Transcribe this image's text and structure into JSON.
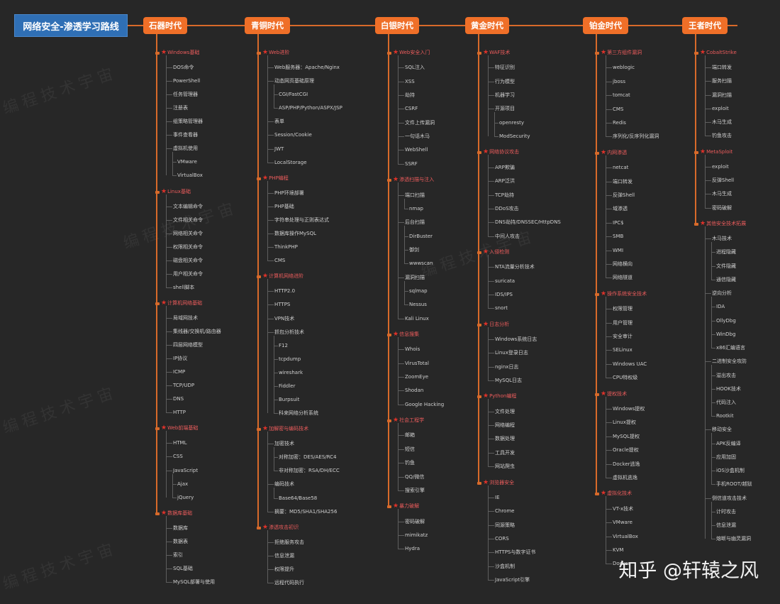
{
  "title": "网络安全-渗透学习路线",
  "watermark": "知乎 @轩辕之风",
  "columns": [
    {
      "era": "石器时代",
      "sections": [
        {
          "title": "Windows基础",
          "items": [
            {
              "t": "DOS命令"
            },
            {
              "t": "PowerShell"
            },
            {
              "t": "任务管理器"
            },
            {
              "t": "注册表"
            },
            {
              "t": "组策略管理器"
            },
            {
              "t": "事件查看器"
            },
            {
              "t": "虚拟机使用"
            },
            {
              "t": "VMware",
              "sub": true
            },
            {
              "t": "VirtualBox",
              "sub": true
            }
          ]
        },
        {
          "title": "Linux基础",
          "items": [
            {
              "t": "文本编辑命令"
            },
            {
              "t": "文件相关命令"
            },
            {
              "t": "网络相关命令"
            },
            {
              "t": "权限相关命令"
            },
            {
              "t": "磁盘相关命令"
            },
            {
              "t": "用户相关命令"
            },
            {
              "t": "shell脚本"
            }
          ]
        },
        {
          "title": "计算机网络基础",
          "items": [
            {
              "t": "局域网技术"
            },
            {
              "t": "集线器/交换机/路由器"
            },
            {
              "t": "四层网络模型"
            },
            {
              "t": "IP协议"
            },
            {
              "t": "ICMP"
            },
            {
              "t": "TCP/UDP"
            },
            {
              "t": "DNS"
            },
            {
              "t": "HTTP"
            }
          ]
        },
        {
          "title": "Web前端基础",
          "items": [
            {
              "t": "HTML"
            },
            {
              "t": "CSS"
            },
            {
              "t": "JavaScript"
            },
            {
              "t": "Ajax",
              "sub": true
            },
            {
              "t": "jQuery",
              "sub": true
            }
          ]
        },
        {
          "title": "数据库基础",
          "items": [
            {
              "t": "数据库"
            },
            {
              "t": "数据表"
            },
            {
              "t": "索引"
            },
            {
              "t": "SQL基础"
            },
            {
              "t": "MySQL部署与使用"
            }
          ]
        }
      ]
    },
    {
      "era": "青铜时代",
      "sections": [
        {
          "title": "Web进阶",
          "items": [
            {
              "t": "Web服务器：Apache/Nginx"
            },
            {
              "t": "动态网页基础原理"
            },
            {
              "t": "CGI/FastCGI",
              "sub": true
            },
            {
              "t": "ASP/PHP/Python/ASPX/JSP",
              "sub": true
            },
            {
              "t": "表单"
            },
            {
              "t": "Session/Cookie"
            },
            {
              "t": "JWT"
            },
            {
              "t": "LocalStorage"
            }
          ]
        },
        {
          "title": "PHP编程",
          "items": [
            {
              "t": "PHP环境部署"
            },
            {
              "t": "PHP基础"
            },
            {
              "t": "字符串处理与正则表达式"
            },
            {
              "t": "数据库操作MySQL"
            },
            {
              "t": "ThinkPHP"
            },
            {
              "t": "CMS"
            }
          ]
        },
        {
          "title": "计算机网络进阶",
          "items": [
            {
              "t": "HTTP2.0"
            },
            {
              "t": "HTTPS"
            },
            {
              "t": "VPN技术"
            },
            {
              "t": "抓包分析技术"
            },
            {
              "t": "F12",
              "sub": true
            },
            {
              "t": "tcpdump",
              "sub": true
            },
            {
              "t": "wireshark",
              "sub": true
            },
            {
              "t": "Fiddler",
              "sub": true
            },
            {
              "t": "Burpsuit",
              "sub": true
            },
            {
              "t": "科来网络分析系统",
              "sub": true
            }
          ]
        },
        {
          "title": "加解密与编码技术",
          "items": [
            {
              "t": "加密技术"
            },
            {
              "t": "对称加密：DES/AES/RC4",
              "sub": true
            },
            {
              "t": "非对称加密：RSA/DH/ECC",
              "sub": true
            },
            {
              "t": "编码技术"
            },
            {
              "t": "Base64/Base58",
              "sub": true
            },
            {
              "t": "摘要：MD5/SHA1/SHA256"
            }
          ]
        },
        {
          "title": "渗透攻击初识",
          "items": [
            {
              "t": "拒绝服务攻击"
            },
            {
              "t": "信息泄漏"
            },
            {
              "t": "权限提升"
            },
            {
              "t": "远程代码执行"
            }
          ]
        }
      ]
    },
    {
      "era": "白银时代",
      "sections": [
        {
          "title": "Web安全入门",
          "items": [
            {
              "t": "SQL注入"
            },
            {
              "t": "XSS"
            },
            {
              "t": "劫持"
            },
            {
              "t": "CSRF"
            },
            {
              "t": "文件上传漏洞"
            },
            {
              "t": "一句话木马"
            },
            {
              "t": "WebShell"
            },
            {
              "t": "SSRF"
            }
          ]
        },
        {
          "title": "渗透扫描与注入",
          "items": [
            {
              "t": "端口扫描"
            },
            {
              "t": "nmap",
              "sub": true
            },
            {
              "t": "后台扫描"
            },
            {
              "t": "DirBuster",
              "sub": true
            },
            {
              "t": "御剑",
              "sub": true
            },
            {
              "t": "wwwscan",
              "sub": true
            },
            {
              "t": "漏洞扫描"
            },
            {
              "t": "sqlmap",
              "sub": true
            },
            {
              "t": "Nessus",
              "sub": true
            },
            {
              "t": "Kali Linux"
            }
          ]
        },
        {
          "title": "信息搜集",
          "items": [
            {
              "t": "Whois"
            },
            {
              "t": "VirusTotal"
            },
            {
              "t": "ZoomEye"
            },
            {
              "t": "Shodan"
            },
            {
              "t": "Google Hacking"
            }
          ]
        },
        {
          "title": "社会工程学",
          "items": [
            {
              "t": "邮箱"
            },
            {
              "t": "短信"
            },
            {
              "t": "钓鱼"
            },
            {
              "t": "QQ/微信"
            },
            {
              "t": "搜索引擎"
            }
          ]
        },
        {
          "title": "暴力破解",
          "items": [
            {
              "t": "密码破解"
            },
            {
              "t": "mimikatz"
            },
            {
              "t": "Hydra"
            }
          ]
        }
      ]
    },
    {
      "era": "黄金时代",
      "sections": [
        {
          "title": "WAF技术",
          "items": [
            {
              "t": "特征识别"
            },
            {
              "t": "行为模型"
            },
            {
              "t": "机器学习"
            },
            {
              "t": "开源项目"
            },
            {
              "t": "openresty",
              "sub": true
            },
            {
              "t": "ModSecurity",
              "sub": true
            }
          ]
        },
        {
          "title": "网络协议攻击",
          "items": [
            {
              "t": "ARP欺骗"
            },
            {
              "t": "ARP泛洪"
            },
            {
              "t": "TCP劫持"
            },
            {
              "t": "DDoS攻击"
            },
            {
              "t": "DNS劫持/DNSSEC/HttpDNS"
            },
            {
              "t": "中间人攻击"
            }
          ]
        },
        {
          "title": "入侵检测",
          "items": [
            {
              "t": "NTA流量分析技术"
            },
            {
              "t": "suricata"
            },
            {
              "t": "IDS/IPS"
            },
            {
              "t": "snort"
            }
          ]
        },
        {
          "title": "日志分析",
          "items": [
            {
              "t": "Windows系统日志"
            },
            {
              "t": "Linux登录日志"
            },
            {
              "t": "nginx日志"
            },
            {
              "t": "MySQL日志"
            }
          ]
        },
        {
          "title": "Python编程",
          "items": [
            {
              "t": "文件处理"
            },
            {
              "t": "网络编程"
            },
            {
              "t": "数据处理"
            },
            {
              "t": "工具开发"
            },
            {
              "t": "网站爬虫"
            }
          ]
        },
        {
          "title": "浏览器安全",
          "items": [
            {
              "t": "IE"
            },
            {
              "t": "Chrome"
            },
            {
              "t": "同源策略"
            },
            {
              "t": "CORS"
            },
            {
              "t": "HTTPS与数字证书"
            },
            {
              "t": "沙盒机制"
            },
            {
              "t": "JavaScript引擎"
            }
          ]
        }
      ]
    },
    {
      "era": "铂金时代",
      "sections": [
        {
          "title": "第三方组件漏洞",
          "items": [
            {
              "t": "weblogic"
            },
            {
              "t": "jboss"
            },
            {
              "t": "tomcat"
            },
            {
              "t": "CMS"
            },
            {
              "t": "Redis"
            },
            {
              "t": "序列化/反序列化漏洞"
            }
          ]
        },
        {
          "title": "内网渗透",
          "items": [
            {
              "t": "netcat"
            },
            {
              "t": "端口转发"
            },
            {
              "t": "反弹Shell"
            },
            {
              "t": "域渗透"
            },
            {
              "t": "IPC$"
            },
            {
              "t": "SMB"
            },
            {
              "t": "WMI"
            },
            {
              "t": "网络横向"
            },
            {
              "t": "网络隧道"
            }
          ]
        },
        {
          "title": "操作系统安全技术",
          "items": [
            {
              "t": "权限管理"
            },
            {
              "t": "用户管理"
            },
            {
              "t": "安全审计"
            },
            {
              "t": "SELinux"
            },
            {
              "t": "Windows UAC"
            },
            {
              "t": "CPU特权级"
            }
          ]
        },
        {
          "title": "提权技术",
          "items": [
            {
              "t": "Windows提权"
            },
            {
              "t": "Linux提权"
            },
            {
              "t": "MySQL提权"
            },
            {
              "t": "Oracle提权"
            },
            {
              "t": "Docker逃逸"
            },
            {
              "t": "虚拟机逃逸"
            }
          ]
        },
        {
          "title": "虚拟化技术",
          "items": [
            {
              "t": "VT-x技术"
            },
            {
              "t": "VMware"
            },
            {
              "t": "VirtualBox"
            },
            {
              "t": "KVM"
            },
            {
              "t": "Docker"
            }
          ]
        }
      ]
    },
    {
      "era": "王者时代",
      "sections": [
        {
          "title": "CobaltStrike",
          "items": [
            {
              "t": "端口转发"
            },
            {
              "t": "服务扫描"
            },
            {
              "t": "漏洞扫描"
            },
            {
              "t": "exploit"
            },
            {
              "t": "木马生成"
            },
            {
              "t": "钓鱼攻击"
            }
          ]
        },
        {
          "title": "MetaSploit",
          "items": [
            {
              "t": "exploit"
            },
            {
              "t": "反弹Shell"
            },
            {
              "t": "木马生成"
            },
            {
              "t": "密码破解"
            }
          ]
        },
        {
          "title": "其他安全技术拓展",
          "items": [
            {
              "t": "木马技术"
            },
            {
              "t": "进程隐藏",
              "sub": true
            },
            {
              "t": "文件隐藏",
              "sub": true
            },
            {
              "t": "通信隐藏",
              "sub": true
            },
            {
              "t": "逆向分析"
            },
            {
              "t": "IDA",
              "sub": true
            },
            {
              "t": "OllyDbg",
              "sub": true
            },
            {
              "t": "WinDbg",
              "sub": true
            },
            {
              "t": "x86汇编语言",
              "sub": true
            },
            {
              "t": "二进制安全攻防"
            },
            {
              "t": "溢出攻击",
              "sub": true
            },
            {
              "t": "HOOK技术",
              "sub": true
            },
            {
              "t": "代码注入",
              "sub": true
            },
            {
              "t": "Rootkit",
              "sub": true
            },
            {
              "t": "移动安全"
            },
            {
              "t": "APK反编译",
              "sub": true
            },
            {
              "t": "应用加固",
              "sub": true
            },
            {
              "t": "iOS沙盒机制",
              "sub": true
            },
            {
              "t": "手机ROOT/越狱",
              "sub": true
            },
            {
              "t": "侧信道攻击技术"
            },
            {
              "t": "计时攻击",
              "sub": true
            },
            {
              "t": "信息泄漏",
              "sub": true
            },
            {
              "t": "熔断与幽灵漏洞",
              "sub": true
            }
          ]
        }
      ]
    }
  ]
}
